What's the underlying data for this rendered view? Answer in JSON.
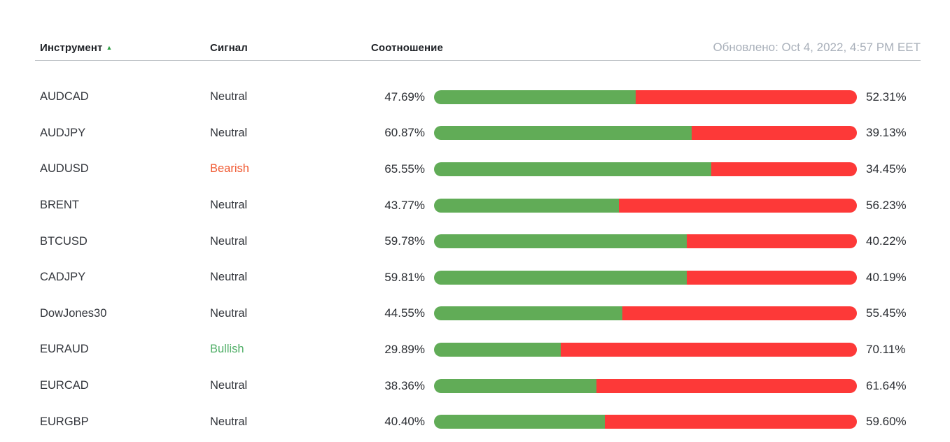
{
  "header": {
    "columns": {
      "instrument": "Инструмент",
      "signal": "Сигнал",
      "ratio": "Соотношение"
    },
    "sort_icon": "▲",
    "updated": "Обновлено: Oct 4, 2022, 4:57 PM EET"
  },
  "colors": {
    "bar_green": "#61ac57",
    "bar_red": "#fd3938",
    "signal_neutral": "#33363c",
    "signal_bearish": "#f0572f",
    "signal_bullish": "#4fae66",
    "sort_arrow": "#2e9e44",
    "updated_text": "#a9b0ba"
  },
  "rows": [
    {
      "instrument": "AUDCAD",
      "signal": "Neutral",
      "left_percent": "47.69%",
      "right_percent": "52.31%",
      "green_value": 47.69,
      "red_value": 52.31
    },
    {
      "instrument": "AUDJPY",
      "signal": "Neutral",
      "left_percent": "60.87%",
      "right_percent": "39.13%",
      "green_value": 60.87,
      "red_value": 39.13
    },
    {
      "instrument": "AUDUSD",
      "signal": "Bearish",
      "left_percent": "65.55%",
      "right_percent": "34.45%",
      "green_value": 65.55,
      "red_value": 34.45
    },
    {
      "instrument": "BRENT",
      "signal": "Neutral",
      "left_percent": "43.77%",
      "right_percent": "56.23%",
      "green_value": 43.77,
      "red_value": 56.23
    },
    {
      "instrument": "BTCUSD",
      "signal": "Neutral",
      "left_percent": "59.78%",
      "right_percent": "40.22%",
      "green_value": 59.78,
      "red_value": 40.22
    },
    {
      "instrument": "CADJPY",
      "signal": "Neutral",
      "left_percent": "59.81%",
      "right_percent": "40.19%",
      "green_value": 59.81,
      "red_value": 40.19
    },
    {
      "instrument": "DowJones30",
      "signal": "Neutral",
      "left_percent": "44.55%",
      "right_percent": "55.45%",
      "green_value": 44.55,
      "red_value": 55.45
    },
    {
      "instrument": "EURAUD",
      "signal": "Bullish",
      "left_percent": "29.89%",
      "right_percent": "70.11%",
      "green_value": 29.89,
      "red_value": 70.11
    },
    {
      "instrument": "EURCAD",
      "signal": "Neutral",
      "left_percent": "38.36%",
      "right_percent": "61.64%",
      "green_value": 38.36,
      "red_value": 61.64
    },
    {
      "instrument": "EURGBP",
      "signal": "Neutral",
      "left_percent": "40.40%",
      "right_percent": "59.60%",
      "green_value": 40.4,
      "red_value": 59.6
    }
  ]
}
